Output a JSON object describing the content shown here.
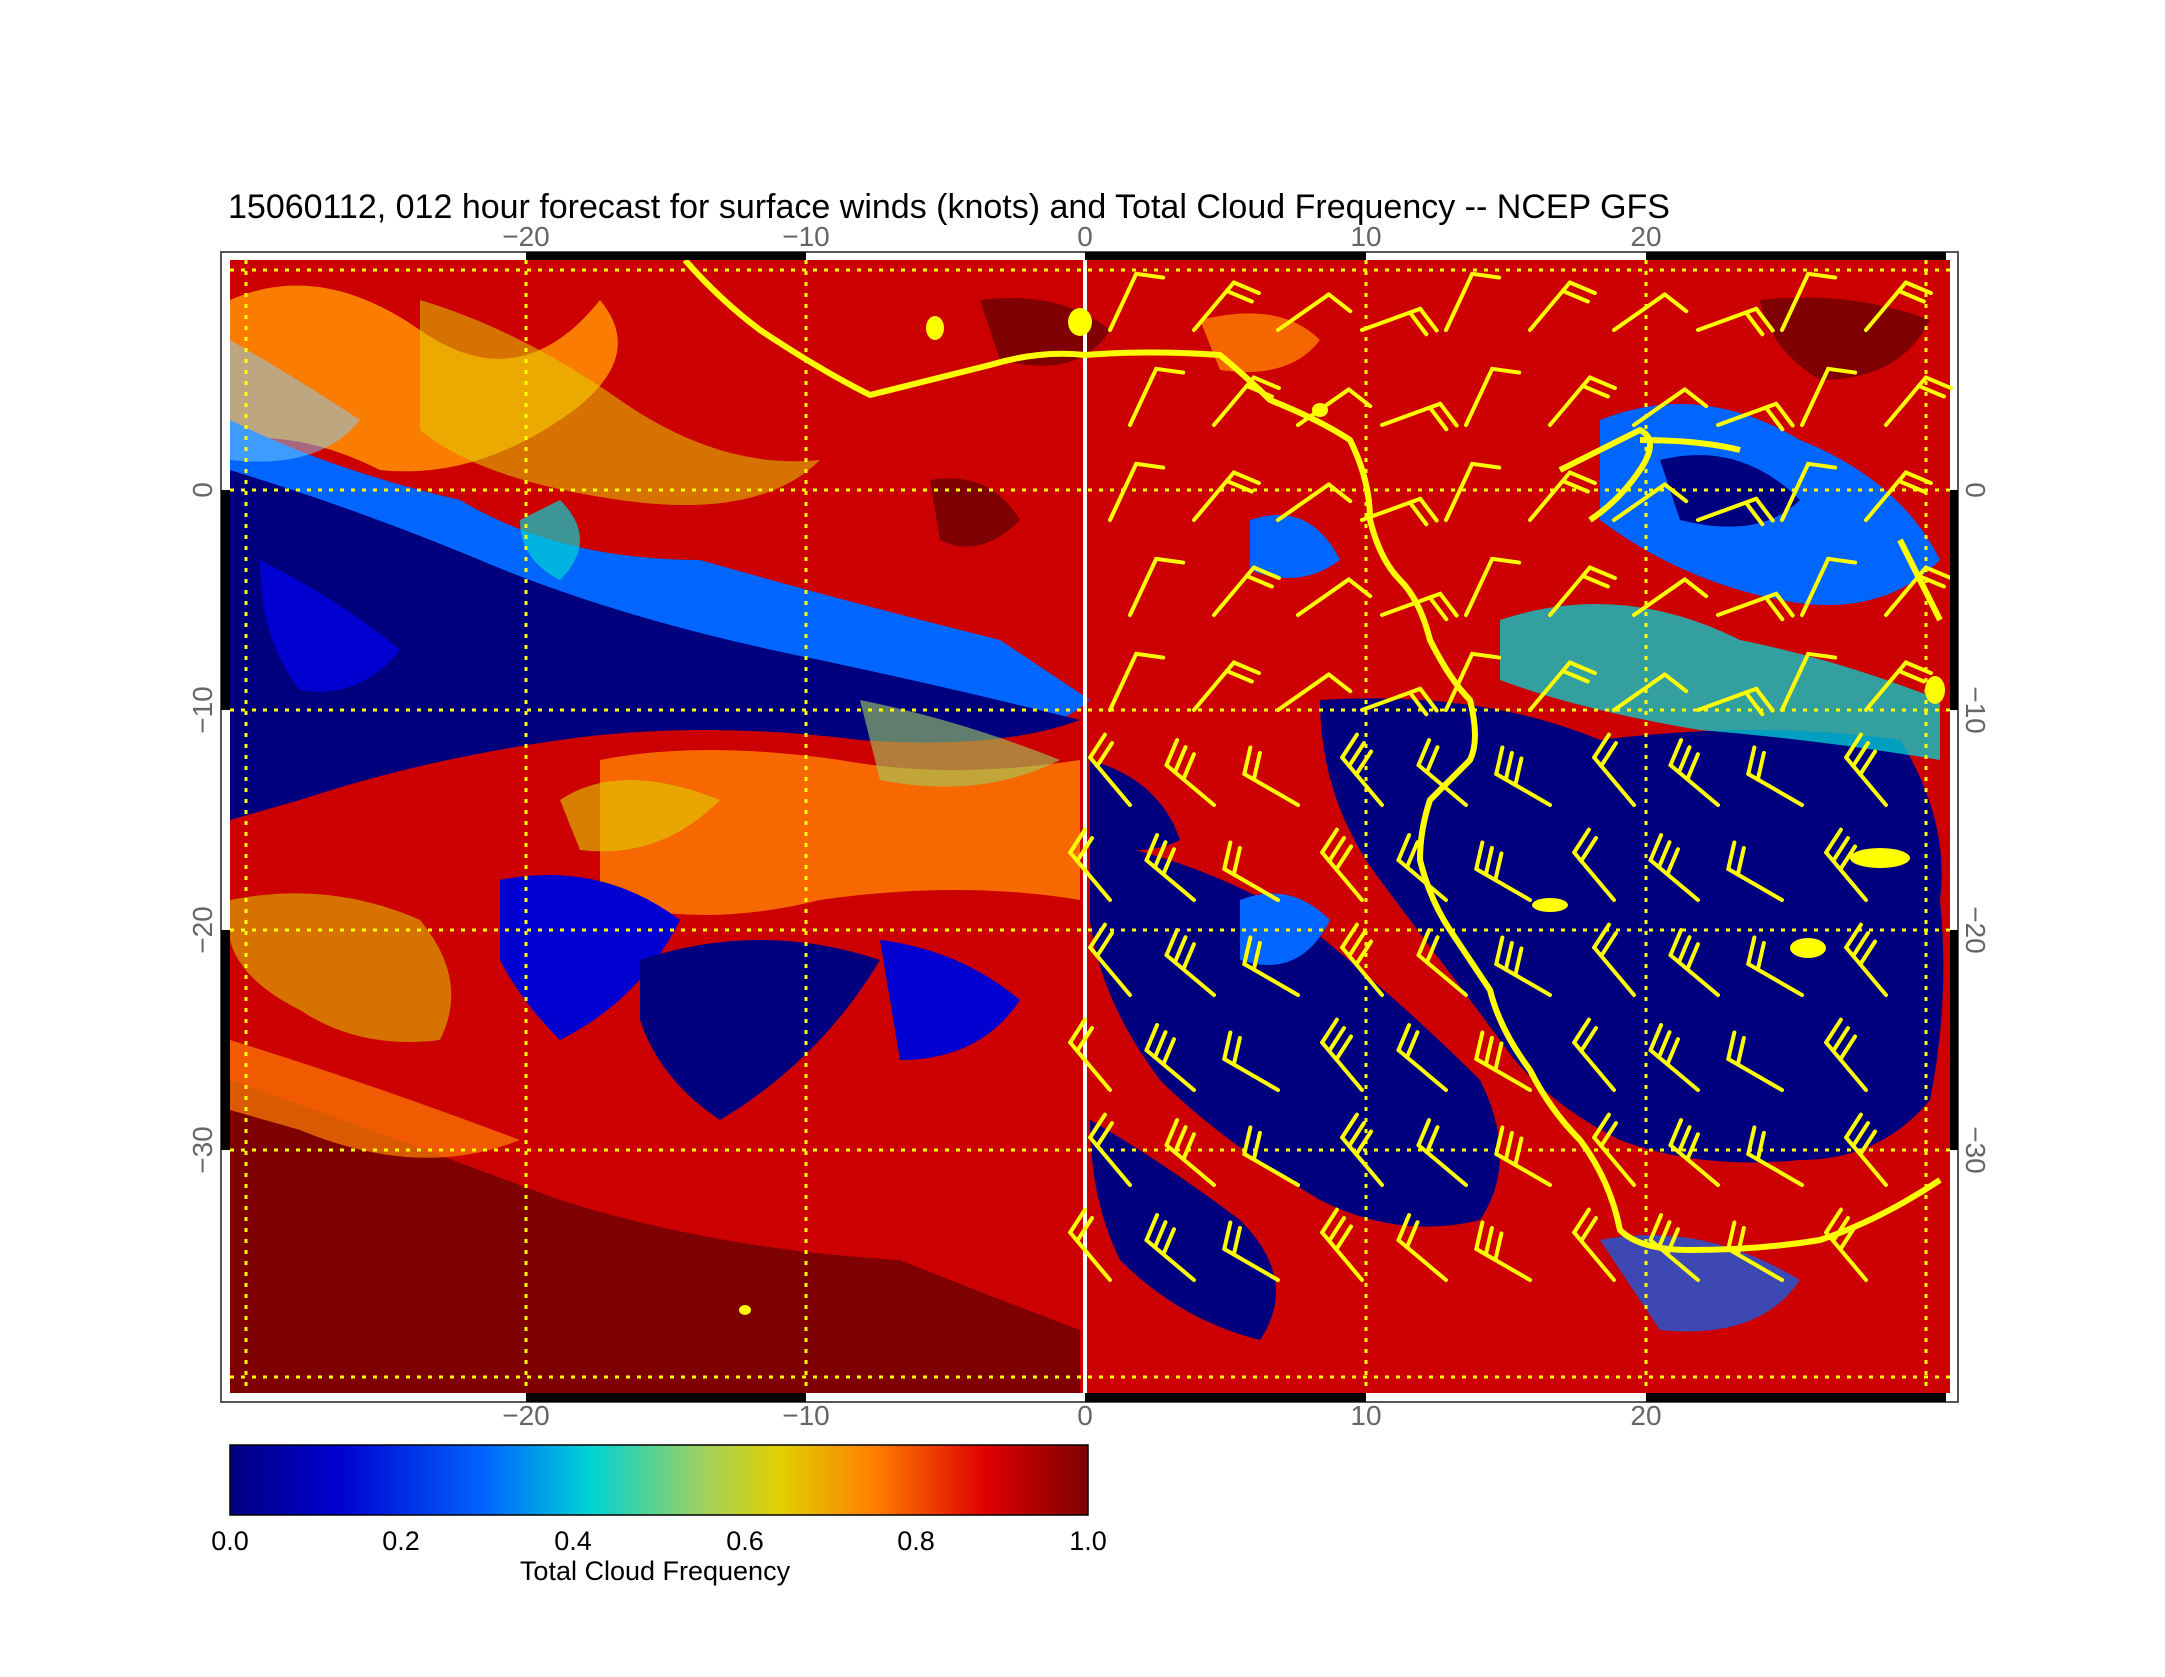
{
  "title": "15060112, 012 hour forecast for surface winds (knots) and Total Cloud Frequency -- NCEP GFS",
  "map": {
    "lon_range": [
      -30,
      30
    ],
    "lat_range": [
      -40,
      11
    ],
    "lon_ticks": [
      "−20",
      "−10",
      "0",
      "10",
      "20"
    ],
    "lat_ticks_left": [
      "0",
      "−10",
      "−20",
      "−30"
    ],
    "lat_ticks_right": [
      "0",
      "−10",
      "−20",
      "−30"
    ],
    "gridline_color": "#ffff00",
    "coastline_color": "#ffff00",
    "wind_barb_color": "#ffff00",
    "meridian_highlight_color": "#ffffff"
  },
  "colorbar": {
    "label": "Total Cloud Frequency",
    "ticks": [
      "0.0",
      "0.2",
      "0.4",
      "0.6",
      "0.8",
      "1.0"
    ],
    "colors": [
      "#00007f",
      "#0000d0",
      "#0066ff",
      "#00d4d4",
      "#a0d060",
      "#e0d000",
      "#ff8000",
      "#e00000",
      "#7f0000"
    ]
  }
}
